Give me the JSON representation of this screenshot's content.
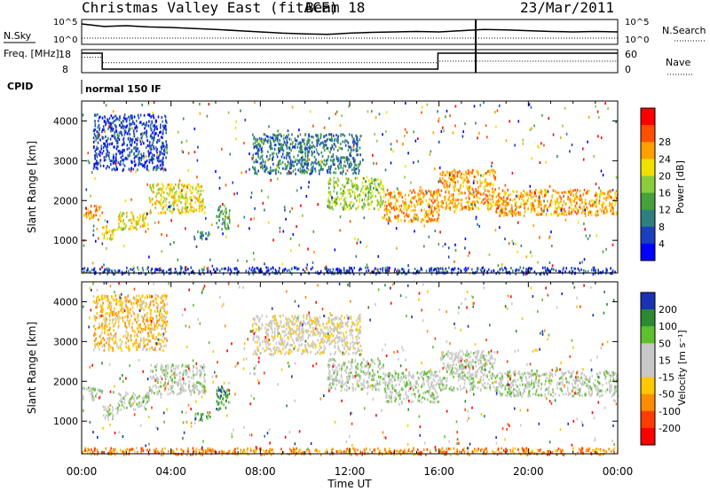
{
  "header": {
    "title": "Christmas Valley East (fitACF)",
    "beam": "Beam 18",
    "date": "23/Mar/2011",
    "cpid_label": "CPID",
    "cpid_value": "normal 150 IF"
  },
  "chart_data": [
    {
      "id": "noise-panel",
      "type": "line",
      "left_axis_label": "N.Sky",
      "right_axis_label": "N.Search",
      "left_ticks": [
        "10^5",
        "10^0"
      ],
      "right_ticks": [
        "10^5",
        "10^0"
      ],
      "x_range_hours": [
        0,
        24
      ],
      "series": [
        {
          "name": "N.Sky",
          "style": "solid",
          "points": [
            [
              0,
              0.18
            ],
            [
              0.4,
              0.22
            ],
            [
              1,
              0.28
            ],
            [
              2,
              0.25
            ],
            [
              3,
              0.3
            ],
            [
              4,
              0.32
            ],
            [
              5,
              0.36
            ],
            [
              6,
              0.4
            ],
            [
              7,
              0.45
            ],
            [
              8,
              0.5
            ],
            [
              9,
              0.55
            ],
            [
              10,
              0.58
            ],
            [
              11,
              0.6
            ],
            [
              12,
              0.55
            ],
            [
              13,
              0.52
            ],
            [
              14,
              0.5
            ],
            [
              15,
              0.48
            ],
            [
              16,
              0.5
            ],
            [
              17,
              0.45
            ],
            [
              18,
              0.4
            ],
            [
              19,
              0.42
            ],
            [
              20,
              0.45
            ],
            [
              21,
              0.48
            ],
            [
              22,
              0.5
            ],
            [
              23,
              0.48
            ],
            [
              24,
              0.5
            ]
          ]
        },
        {
          "name": "N.Search",
          "style": "dotted",
          "points": [
            [
              0,
              0.75
            ],
            [
              6,
              0.75
            ],
            [
              12,
              0.75
            ],
            [
              18,
              0.75
            ],
            [
              24,
              0.75
            ]
          ]
        }
      ]
    },
    {
      "id": "freq-panel",
      "type": "line",
      "left_axis_label": "Freq. [MHz]",
      "right_axis_label": "Nave",
      "left_ticks": [
        "18",
        "8"
      ],
      "right_ticks": [
        "60",
        "0"
      ],
      "x_range_hours": [
        0,
        24
      ],
      "series": [
        {
          "name": "Freq.",
          "style": "solid",
          "points": [
            [
              0,
              17
            ],
            [
              0.92,
              17
            ],
            [
              0.92,
              8
            ],
            [
              15.95,
              8
            ],
            [
              15.95,
              17
            ],
            [
              24,
              17
            ]
          ]
        },
        {
          "name": "Nave",
          "style": "dotted",
          "points": [
            [
              0,
              40
            ],
            [
              0.92,
              40
            ],
            [
              0.92,
              26
            ],
            [
              15.95,
              26
            ],
            [
              15.95,
              30
            ],
            [
              24,
              30
            ]
          ]
        }
      ]
    },
    {
      "id": "power-panel",
      "type": "heatmap",
      "ylabel": "Slant Range [km]",
      "y_ticks": [
        1000,
        2000,
        3000,
        4000
      ],
      "ylim": [
        180,
        4500
      ],
      "x_range_hours": [
        0,
        24
      ],
      "colorbar": {
        "label": "Power [dB]",
        "ticks": [
          "4",
          "8",
          "12",
          "16",
          "20",
          "24",
          "28"
        ],
        "colors": [
          "#0000ff",
          "#1a3fbf",
          "#2e7f80",
          "#46a03c",
          "#8ccc3c",
          "#f0e000",
          "#ffa000",
          "#ff5000",
          "#ff0000"
        ]
      },
      "bands": [
        {
          "x": [
            0,
            0.9
          ],
          "r": [
            1550,
            1900
          ],
          "level": 6
        },
        {
          "x": [
            0.9,
            1.6
          ],
          "r": [
            1050,
            1400
          ],
          "level": 5
        },
        {
          "x": [
            1.6,
            3.0
          ],
          "r": [
            1300,
            1750
          ],
          "level": 5
        },
        {
          "x": [
            3.0,
            5.5
          ],
          "r": [
            1700,
            2450
          ],
          "level": 5
        },
        {
          "x": [
            11.0,
            13.5
          ],
          "r": [
            1800,
            2600
          ],
          "level": 4
        },
        {
          "x": [
            13.5,
            16.0
          ],
          "r": [
            1500,
            2300
          ],
          "level": 6
        },
        {
          "x": [
            16.0,
            18.5
          ],
          "r": [
            1800,
            2800
          ],
          "level": 6
        },
        {
          "x": [
            18.5,
            24.0
          ],
          "r": [
            1650,
            2300
          ],
          "level": 6
        },
        {
          "x": [
            7.6,
            12.5
          ],
          "r": [
            2700,
            3700
          ],
          "level": 2
        },
        {
          "x": [
            0.5,
            3.8
          ],
          "r": [
            2800,
            4200
          ],
          "level": 1
        },
        {
          "x": [
            6.0,
            6.6
          ],
          "r": [
            1300,
            1900
          ],
          "level": 3
        },
        {
          "x": [
            5.0,
            5.8
          ],
          "r": [
            1050,
            1250
          ],
          "level": 2
        },
        {
          "x": [
            0,
            24
          ],
          "r": [
            180,
            350
          ],
          "level": 1
        }
      ]
    },
    {
      "id": "velocity-panel",
      "type": "heatmap",
      "xlabel": "Time UT",
      "ylabel": "Slant Range [km]",
      "x_tick_labels": [
        "00:00",
        "04:00",
        "08:00",
        "12:00",
        "16:00",
        "20:00",
        "00:00"
      ],
      "y_ticks": [
        1000,
        2000,
        3000,
        4000
      ],
      "ylim": [
        180,
        4500
      ],
      "x_range_hours": [
        0,
        24
      ],
      "colorbar": {
        "label": "Velocity [m s⁻¹]",
        "ticks": [
          "200",
          "100",
          "50",
          "15",
          "-15",
          "-50",
          "-100",
          "-200"
        ],
        "colors": [
          "#1a32b4",
          "#2d8a32",
          "#5fc02d",
          "#c8c8c8",
          "#c8c8c8",
          "#ffc800",
          "#ff8c00",
          "#ff3c00",
          "#ff0000"
        ]
      },
      "bands": [
        {
          "x": [
            0,
            0.9
          ],
          "r": [
            1550,
            1900
          ],
          "level": 3
        },
        {
          "x": [
            0.9,
            1.6
          ],
          "r": [
            1050,
            1400
          ],
          "level": 3
        },
        {
          "x": [
            1.6,
            3.0
          ],
          "r": [
            1300,
            1750
          ],
          "level": 3
        },
        {
          "x": [
            3.0,
            5.5
          ],
          "r": [
            1700,
            2450
          ],
          "level": 3
        },
        {
          "x": [
            11.0,
            13.5
          ],
          "r": [
            1800,
            2600
          ],
          "level": 3
        },
        {
          "x": [
            13.5,
            16.0
          ],
          "r": [
            1500,
            2300
          ],
          "level": 3
        },
        {
          "x": [
            16.0,
            18.5
          ],
          "r": [
            1800,
            2800
          ],
          "level": 3
        },
        {
          "x": [
            18.5,
            24.0
          ],
          "r": [
            1650,
            2300
          ],
          "level": 3
        },
        {
          "x": [
            7.6,
            12.5
          ],
          "r": [
            2700,
            3700
          ],
          "level": 4
        },
        {
          "x": [
            0.5,
            3.8
          ],
          "r": [
            2800,
            4200
          ],
          "level": 5
        },
        {
          "x": [
            6.0,
            6.6
          ],
          "r": [
            1300,
            1900
          ],
          "level": 1
        },
        {
          "x": [
            5.0,
            5.8
          ],
          "r": [
            1050,
            1250
          ],
          "level": 2
        },
        {
          "x": [
            0,
            24
          ],
          "r": [
            180,
            350
          ],
          "level": 6
        }
      ]
    }
  ]
}
